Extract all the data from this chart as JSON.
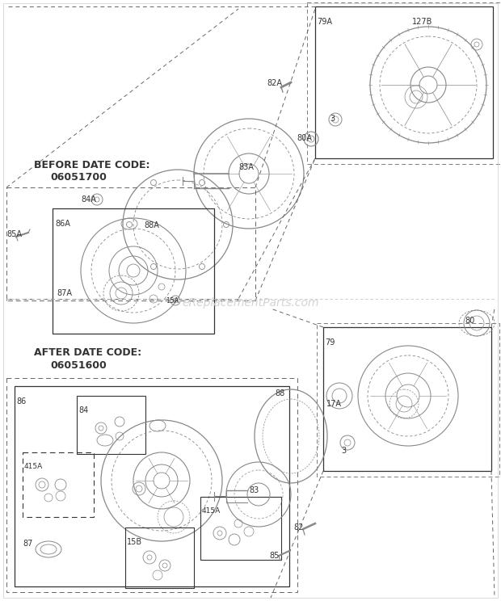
{
  "bg_color": "#ffffff",
  "line_color": "#888888",
  "dark_line": "#333333",
  "med_line": "#666666",
  "watermark": "eReplacementParts.com",
  "watermark_color": "#cccccc",
  "before_title_line1": "BEFORE DATE CODE:",
  "before_title_line2": "06051700",
  "after_title_line1": "AFTER DATE CODE:",
  "after_title_line2": "06051600"
}
